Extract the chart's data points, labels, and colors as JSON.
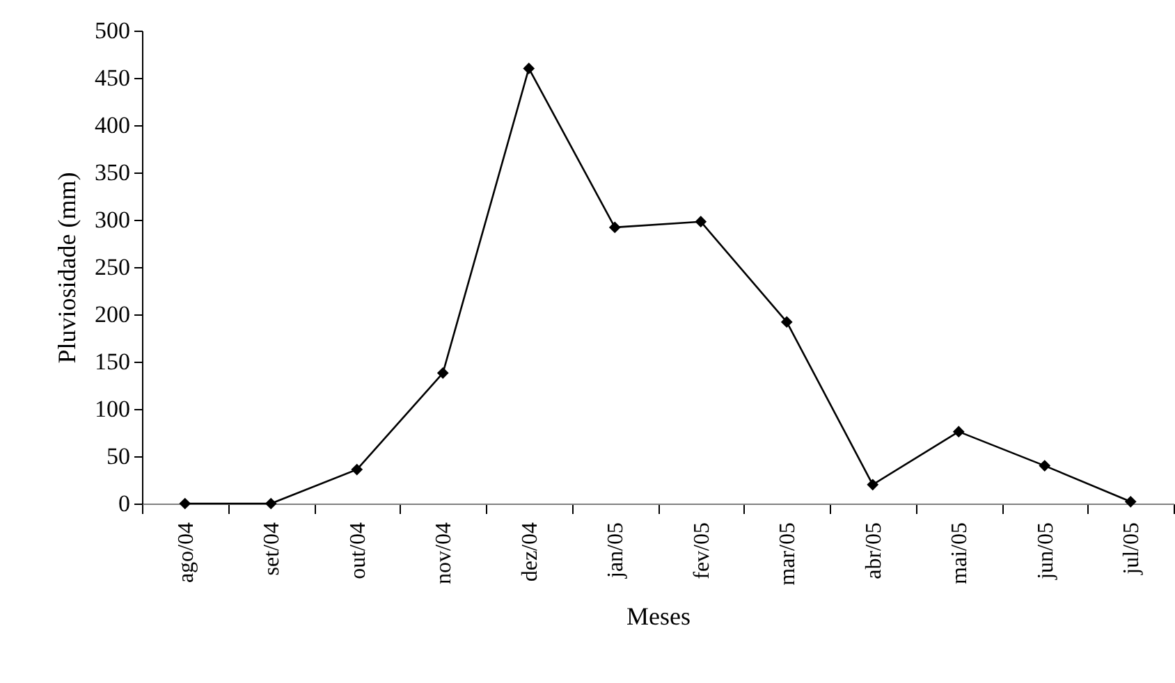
{
  "chart_data": {
    "type": "line",
    "xlabel": "Meses",
    "ylabel": "Pluviosidade (mm)",
    "categories": [
      "ago/04",
      "set/04",
      "out/04",
      "nov/04",
      "dez/04",
      "jan/05",
      "fev/05",
      "mar/05",
      "abr/05",
      "mai/05",
      "jun/05",
      "jul/05"
    ],
    "series": [
      {
        "color": "#000000",
        "values": [
          0,
          0,
          36,
          138,
          460,
          292,
          298,
          192,
          20,
          76,
          40,
          2
        ]
      }
    ],
    "ylim": [
      0,
      500
    ],
    "yticks": [
      0,
      50,
      100,
      150,
      200,
      250,
      300,
      350,
      400,
      450,
      500
    ],
    "grid": false,
    "marker": "diamond",
    "line_style": "solid"
  }
}
